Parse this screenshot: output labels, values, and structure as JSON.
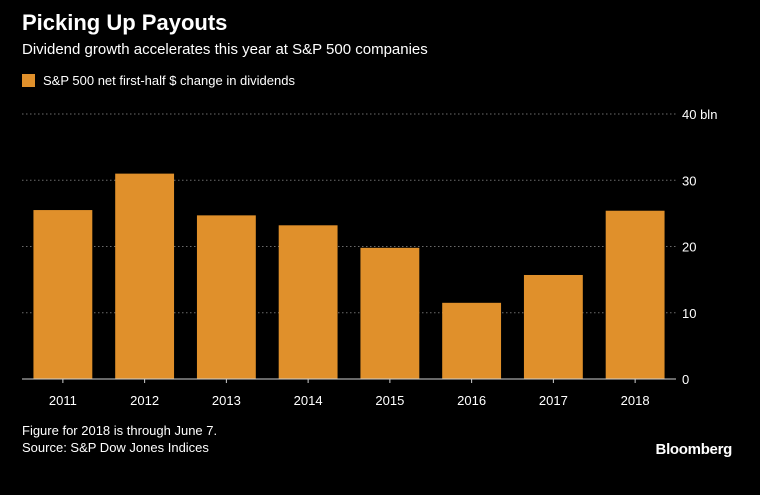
{
  "header": {
    "title": "Picking Up Payouts",
    "subtitle": "Dividend growth accelerates this year at S&P 500 companies"
  },
  "legend": {
    "label": "S&P 500 net first-half $ change in dividends",
    "color": "#e0902b"
  },
  "colors": {
    "background": "#000000",
    "bar": "#e0902b",
    "grid": "#6b6b6b",
    "text": "#ffffff",
    "axis": "#cfcfcf"
  },
  "chart_data": {
    "type": "bar",
    "title": "Picking Up Payouts",
    "subtitle": "Dividend growth accelerates this year at S&P 500 companies",
    "categories": [
      "2011",
      "2012",
      "2013",
      "2014",
      "2015",
      "2016",
      "2017",
      "2018"
    ],
    "series": [
      {
        "name": "S&P 500 net first-half $ change in dividends",
        "values": [
          25.5,
          31,
          24.7,
          23.2,
          19.8,
          11.5,
          15.7,
          25.4
        ]
      }
    ],
    "xlabel": "",
    "ylabel": "",
    "ylim": [
      0,
      40
    ],
    "yticks": [
      0,
      10,
      20,
      30,
      40
    ],
    "ytick_labels": [
      "0",
      "10",
      "20",
      "30",
      "40 bln"
    ],
    "grid": true,
    "legend_position": "top-left"
  },
  "footer": {
    "note": "Figure for 2018 is through June 7.",
    "source": "Source: S&P Dow Jones Indices",
    "brand": "Bloomberg"
  }
}
